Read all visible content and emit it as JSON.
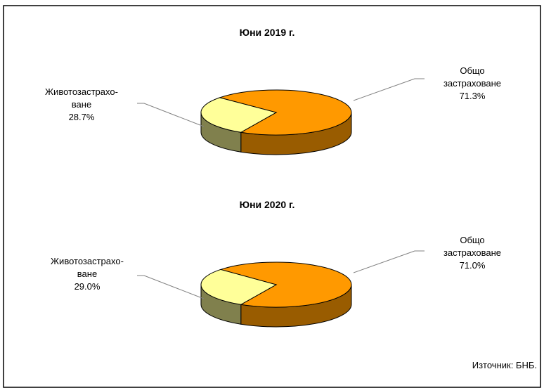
{
  "chart_data": [
    {
      "type": "pie",
      "title": "Юни 2019 г.",
      "categories": [
        "Общо застраховане",
        "Животозастрахо-\nване"
      ],
      "values": [
        71.3,
        28.7
      ],
      "value_labels": [
        "71.3%",
        "28.7%"
      ],
      "colors": [
        "#ff9900",
        "#ffff99"
      ]
    },
    {
      "type": "pie",
      "title": "Юни 2020 г.",
      "categories": [
        "Общо застраховане",
        "Животозастрахо-\nване"
      ],
      "values": [
        71.0,
        29.0
      ],
      "value_labels": [
        "71.0%",
        "29.0%"
      ],
      "colors": [
        "#ff9900",
        "#ffff99"
      ]
    }
  ],
  "source": "Източник: БНБ."
}
